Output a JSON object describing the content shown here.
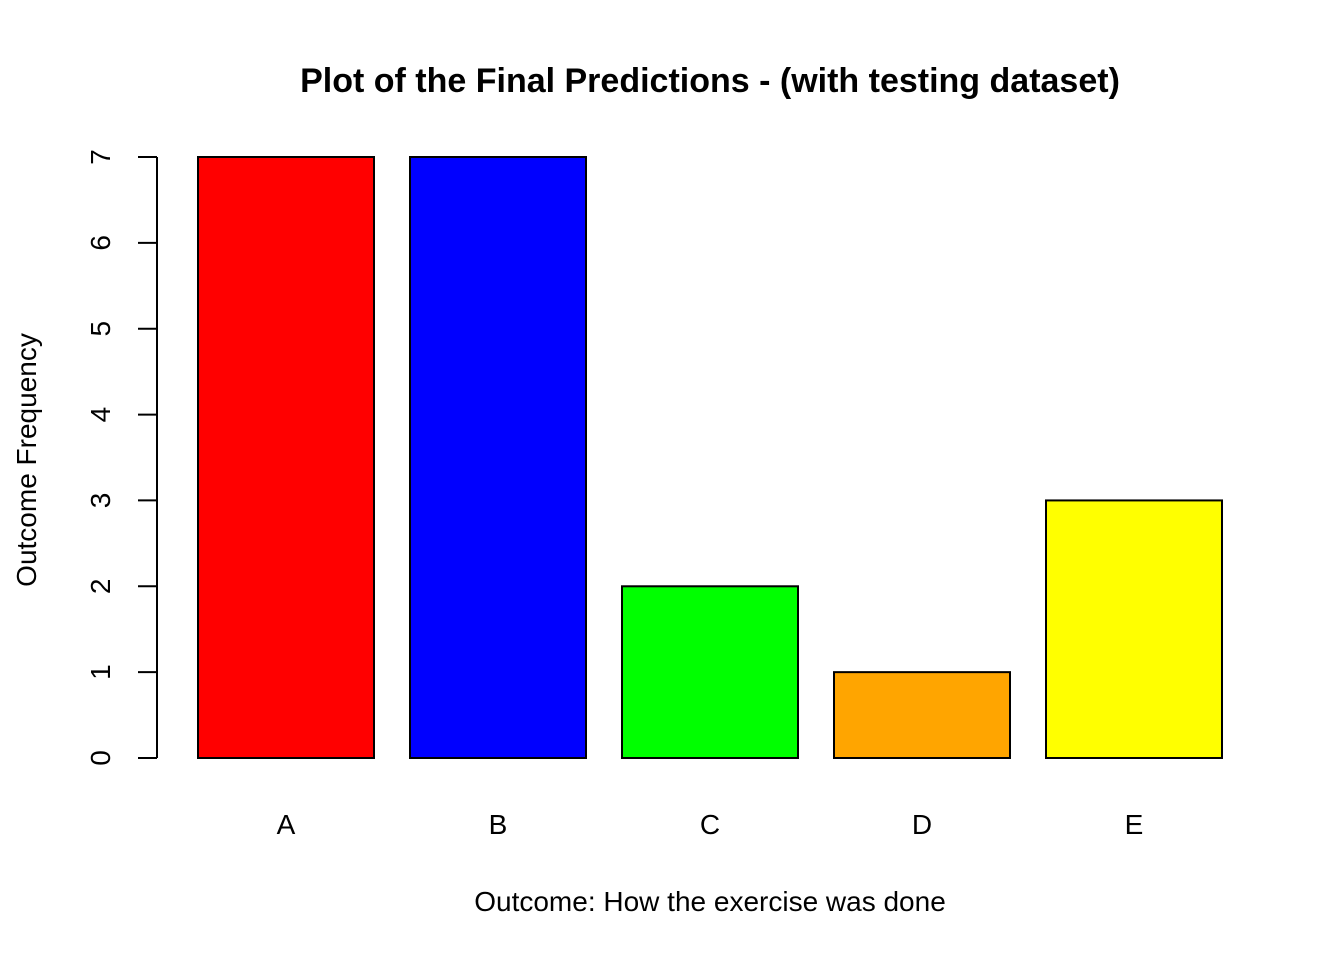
{
  "chart_data": {
    "type": "bar",
    "title": "Plot of the Final Predictions - (with testing dataset)",
    "xlabel": "Outcome: How the exercise was done",
    "ylabel": "Outcome Frequency",
    "categories": [
      "A",
      "B",
      "C",
      "D",
      "E"
    ],
    "values": [
      7,
      7,
      2,
      1,
      3
    ],
    "colors": [
      "#FF0000",
      "#0000FF",
      "#00FF00",
      "#FFA500",
      "#FFFF00"
    ],
    "ylim": [
      0,
      7
    ],
    "yticks": [
      "0",
      "1",
      "2",
      "3",
      "4",
      "5",
      "6",
      "7"
    ],
    "grid": false,
    "legend": "none"
  }
}
